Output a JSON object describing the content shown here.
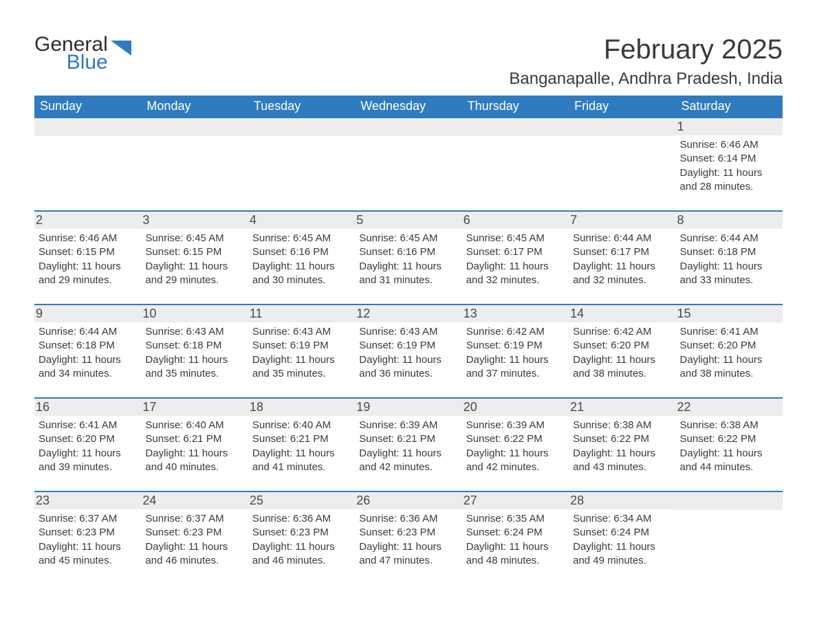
{
  "logo": {
    "line1": "General",
    "line2": "Blue"
  },
  "title": "February 2025",
  "location": "Banganapalle, Andhra Pradesh, India",
  "colors": {
    "header_bg": "#2f7bbf",
    "header_text": "#ffffff",
    "day_bar_bg": "#ededed",
    "border": "#2f7bbf",
    "body_text": "#3a3a3a",
    "logo_blue": "#2f7bbf"
  },
  "weekdays": [
    "Sunday",
    "Monday",
    "Tuesday",
    "Wednesday",
    "Thursday",
    "Friday",
    "Saturday"
  ],
  "weeks": [
    [
      null,
      null,
      null,
      null,
      null,
      null,
      {
        "d": "1",
        "sunrise": "6:46 AM",
        "sunset": "6:14 PM",
        "daylight": "11 hours and 28 minutes."
      }
    ],
    [
      {
        "d": "2",
        "sunrise": "6:46 AM",
        "sunset": "6:15 PM",
        "daylight": "11 hours and 29 minutes."
      },
      {
        "d": "3",
        "sunrise": "6:45 AM",
        "sunset": "6:15 PM",
        "daylight": "11 hours and 29 minutes."
      },
      {
        "d": "4",
        "sunrise": "6:45 AM",
        "sunset": "6:16 PM",
        "daylight": "11 hours and 30 minutes."
      },
      {
        "d": "5",
        "sunrise": "6:45 AM",
        "sunset": "6:16 PM",
        "daylight": "11 hours and 31 minutes."
      },
      {
        "d": "6",
        "sunrise": "6:45 AM",
        "sunset": "6:17 PM",
        "daylight": "11 hours and 32 minutes."
      },
      {
        "d": "7",
        "sunrise": "6:44 AM",
        "sunset": "6:17 PM",
        "daylight": "11 hours and 32 minutes."
      },
      {
        "d": "8",
        "sunrise": "6:44 AM",
        "sunset": "6:18 PM",
        "daylight": "11 hours and 33 minutes."
      }
    ],
    [
      {
        "d": "9",
        "sunrise": "6:44 AM",
        "sunset": "6:18 PM",
        "daylight": "11 hours and 34 minutes."
      },
      {
        "d": "10",
        "sunrise": "6:43 AM",
        "sunset": "6:18 PM",
        "daylight": "11 hours and 35 minutes."
      },
      {
        "d": "11",
        "sunrise": "6:43 AM",
        "sunset": "6:19 PM",
        "daylight": "11 hours and 35 minutes."
      },
      {
        "d": "12",
        "sunrise": "6:43 AM",
        "sunset": "6:19 PM",
        "daylight": "11 hours and 36 minutes."
      },
      {
        "d": "13",
        "sunrise": "6:42 AM",
        "sunset": "6:19 PM",
        "daylight": "11 hours and 37 minutes."
      },
      {
        "d": "14",
        "sunrise": "6:42 AM",
        "sunset": "6:20 PM",
        "daylight": "11 hours and 38 minutes."
      },
      {
        "d": "15",
        "sunrise": "6:41 AM",
        "sunset": "6:20 PM",
        "daylight": "11 hours and 38 minutes."
      }
    ],
    [
      {
        "d": "16",
        "sunrise": "6:41 AM",
        "sunset": "6:20 PM",
        "daylight": "11 hours and 39 minutes."
      },
      {
        "d": "17",
        "sunrise": "6:40 AM",
        "sunset": "6:21 PM",
        "daylight": "11 hours and 40 minutes."
      },
      {
        "d": "18",
        "sunrise": "6:40 AM",
        "sunset": "6:21 PM",
        "daylight": "11 hours and 41 minutes."
      },
      {
        "d": "19",
        "sunrise": "6:39 AM",
        "sunset": "6:21 PM",
        "daylight": "11 hours and 42 minutes."
      },
      {
        "d": "20",
        "sunrise": "6:39 AM",
        "sunset": "6:22 PM",
        "daylight": "11 hours and 42 minutes."
      },
      {
        "d": "21",
        "sunrise": "6:38 AM",
        "sunset": "6:22 PM",
        "daylight": "11 hours and 43 minutes."
      },
      {
        "d": "22",
        "sunrise": "6:38 AM",
        "sunset": "6:22 PM",
        "daylight": "11 hours and 44 minutes."
      }
    ],
    [
      {
        "d": "23",
        "sunrise": "6:37 AM",
        "sunset": "6:23 PM",
        "daylight": "11 hours and 45 minutes."
      },
      {
        "d": "24",
        "sunrise": "6:37 AM",
        "sunset": "6:23 PM",
        "daylight": "11 hours and 46 minutes."
      },
      {
        "d": "25",
        "sunrise": "6:36 AM",
        "sunset": "6:23 PM",
        "daylight": "11 hours and 46 minutes."
      },
      {
        "d": "26",
        "sunrise": "6:36 AM",
        "sunset": "6:23 PM",
        "daylight": "11 hours and 47 minutes."
      },
      {
        "d": "27",
        "sunrise": "6:35 AM",
        "sunset": "6:24 PM",
        "daylight": "11 hours and 48 minutes."
      },
      {
        "d": "28",
        "sunrise": "6:34 AM",
        "sunset": "6:24 PM",
        "daylight": "11 hours and 49 minutes."
      },
      null
    ]
  ],
  "labels": {
    "sunrise": "Sunrise: ",
    "sunset": "Sunset: ",
    "daylight": "Daylight: "
  }
}
